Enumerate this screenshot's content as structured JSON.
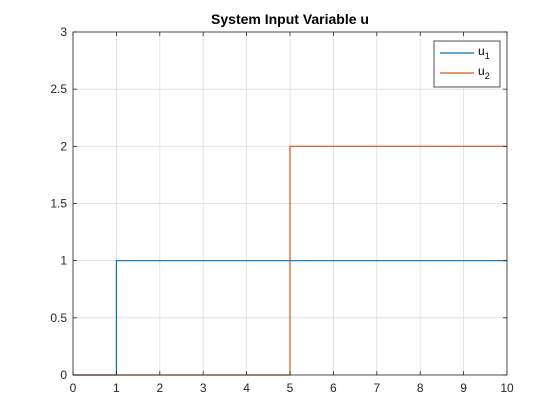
{
  "chart_data": {
    "type": "line",
    "title": "System Input Variable u",
    "xlabel": "",
    "ylabel": "",
    "xlim": [
      0,
      10
    ],
    "ylim": [
      0,
      3
    ],
    "grid": true,
    "legend_position": "top-right",
    "x_ticks": [
      "0",
      "1",
      "2",
      "3",
      "4",
      "5",
      "6",
      "7",
      "8",
      "9",
      "10"
    ],
    "y_ticks": [
      "0",
      "0.5",
      "1",
      "1.5",
      "2",
      "2.5",
      "3"
    ],
    "series": [
      {
        "name": "u",
        "name_subscript": "1",
        "color": "#0072BD",
        "x": [
          0,
          1,
          1,
          10
        ],
        "y": [
          0,
          0,
          1,
          1
        ]
      },
      {
        "name": "u",
        "name_subscript": "2",
        "color": "#D95319",
        "x": [
          0,
          5,
          5,
          10
        ],
        "y": [
          0,
          0,
          2,
          2
        ]
      }
    ]
  }
}
